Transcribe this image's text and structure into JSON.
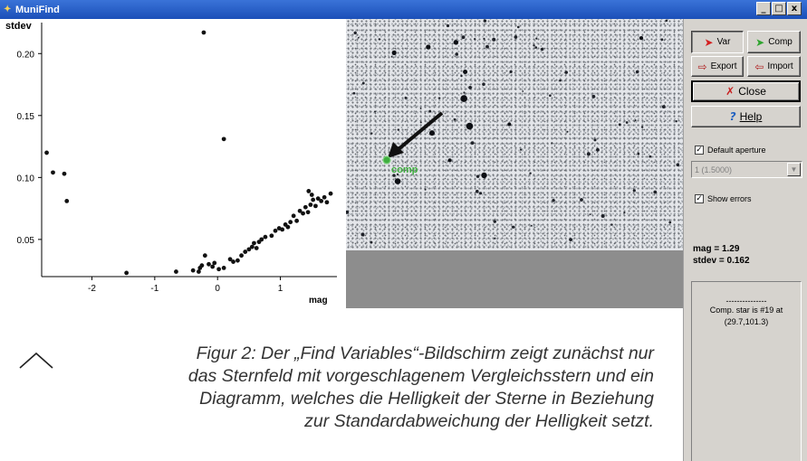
{
  "window": {
    "title": "MuniFind",
    "controls": [
      "_",
      "□",
      "x"
    ]
  },
  "plot": {
    "ylabel": "stdev",
    "xlabel": "mag"
  },
  "chart_data": {
    "type": "scatter",
    "title": "",
    "xlabel": "mag",
    "ylabel": "stdev",
    "xlim": [
      -2.8,
      1.9
    ],
    "ylim": [
      0.02,
      0.225
    ],
    "xticks": [
      "-2",
      "-1",
      "0",
      "1"
    ],
    "yticks": [
      "0.05",
      "0.10",
      "0.15",
      "0.20"
    ],
    "grid": false,
    "points": [
      [
        -2.72,
        0.12
      ],
      [
        -2.62,
        0.104
      ],
      [
        -2.44,
        0.103
      ],
      [
        -2.4,
        0.081
      ],
      [
        -1.45,
        0.023
      ],
      [
        -0.66,
        0.024
      ],
      [
        -0.39,
        0.025
      ],
      [
        -0.3,
        0.024
      ],
      [
        -0.28,
        0.027
      ],
      [
        -0.25,
        0.029
      ],
      [
        -0.2,
        0.037
      ],
      [
        -0.14,
        0.03
      ],
      [
        -0.08,
        0.028
      ],
      [
        -0.05,
        0.031
      ],
      [
        0.02,
        0.026
      ],
      [
        0.1,
        0.027
      ],
      [
        0.2,
        0.034
      ],
      [
        0.25,
        0.032
      ],
      [
        0.32,
        0.033
      ],
      [
        0.38,
        0.037
      ],
      [
        0.44,
        0.04
      ],
      [
        0.5,
        0.042
      ],
      [
        0.55,
        0.044
      ],
      [
        0.58,
        0.047
      ],
      [
        0.62,
        0.043
      ],
      [
        0.66,
        0.048
      ],
      [
        0.7,
        0.05
      ],
      [
        0.76,
        0.052
      ],
      [
        0.86,
        0.053
      ],
      [
        0.92,
        0.057
      ],
      [
        0.98,
        0.059
      ],
      [
        1.03,
        0.058
      ],
      [
        1.08,
        0.062
      ],
      [
        1.12,
        0.06
      ],
      [
        1.16,
        0.064
      ],
      [
        1.21,
        0.069
      ],
      [
        1.26,
        0.065
      ],
      [
        1.31,
        0.073
      ],
      [
        1.36,
        0.071
      ],
      [
        1.4,
        0.076
      ],
      [
        1.44,
        0.072
      ],
      [
        1.48,
        0.078
      ],
      [
        1.52,
        0.082
      ],
      [
        1.56,
        0.077
      ],
      [
        1.6,
        0.083
      ],
      [
        1.65,
        0.081
      ],
      [
        1.7,
        0.084
      ],
      [
        1.74,
        0.08
      ],
      [
        1.8,
        0.087
      ],
      [
        1.45,
        0.089
      ],
      [
        1.5,
        0.086
      ],
      [
        -0.22,
        0.217
      ],
      [
        0.1,
        0.131
      ]
    ]
  },
  "image": {
    "marker_label": "comp",
    "marker_color": "#3fae3f",
    "arrow_color": "#111111"
  },
  "side": {
    "var_label": "Var",
    "comp_label": "Comp",
    "export_label": "Export",
    "import_label": "Import",
    "close_label": "Close",
    "help_label": "Help",
    "default_aperture_label": "Default aperture",
    "default_aperture_checked": true,
    "aperture_value": "1 (1.5000)",
    "show_errors_label": "Show errors",
    "show_errors_checked": true,
    "mag_readout": "mag = 1.29",
    "stdev_readout": "stdev = 0.162",
    "info_dashes": "---------------",
    "info_line1": "Comp. star is #19 at",
    "info_line2": "(29.7,101.3)"
  },
  "caption": {
    "line1": "Figur 2: Der „Find Variables“-Bildschirm zeigt zunächst nur",
    "line2": "das Sternfeld mit vorgeschlagenem Vergleichsstern und ein",
    "line3": "Diagramm, welches die Helligkeit der Sterne in Beziehung",
    "line4": "zur Standardabweichung der Helligkeit setzt."
  },
  "colors": {
    "titlebar": "#1b4fb8",
    "panel": "#d6d3ce",
    "var_arrow": "#d42020",
    "comp_arrow": "#2fa52f",
    "close_x": "#c81e1e",
    "help_q": "#2060c0"
  }
}
